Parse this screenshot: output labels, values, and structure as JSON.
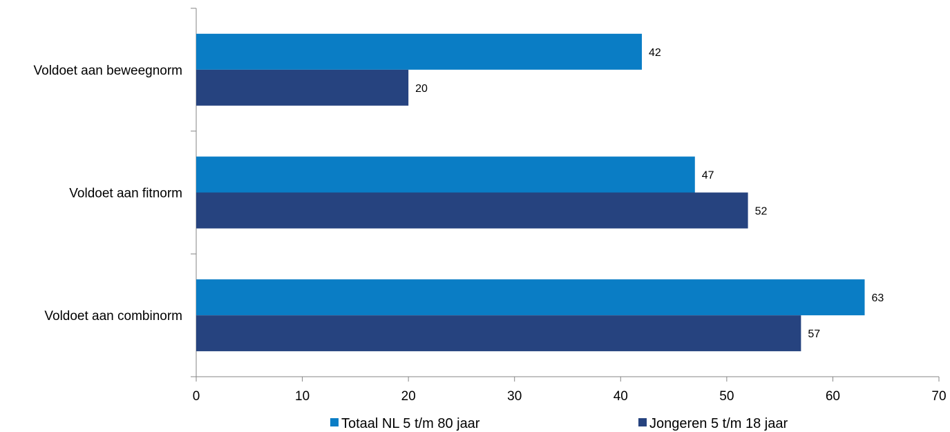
{
  "chart_data": {
    "type": "bar",
    "orientation": "horizontal",
    "categories": [
      "Voldoet aan beweegnorm",
      "Voldoet aan fitnorm",
      "Voldoet aan combinorm"
    ],
    "series": [
      {
        "name": "Totaal NL 5 t/m 80 jaar",
        "values": [
          42,
          47,
          63
        ],
        "labels": [
          "42",
          "47",
          "63"
        ],
        "color": "#0a7dc5"
      },
      {
        "name": "Jongeren 5 t/m 18 jaar",
        "values": [
          20,
          52,
          57
        ],
        "labels": [
          "20",
          "52",
          "57"
        ],
        "color": "#26437f"
      }
    ],
    "xlim": [
      0,
      70
    ],
    "xticks": [
      0,
      10,
      20,
      30,
      40,
      50,
      60,
      70
    ],
    "xtick_labels": [
      "0",
      "10",
      "20",
      "30",
      "40",
      "50",
      "60",
      "70"
    ],
    "grid": false,
    "legend_position": "bottom",
    "axis_color": "#868686"
  }
}
